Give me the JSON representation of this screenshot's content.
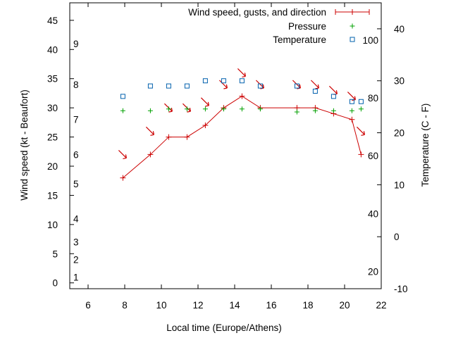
{
  "chart_data": {
    "type": "line",
    "xlabel": "Local time (Europe/Athens)",
    "ylabel_left": "Wind speed (kt - Beaufort)",
    "ylabel_right": "Temperature (C - F)",
    "xlim": [
      5,
      22
    ],
    "ylim_left": [
      -1,
      48
    ],
    "ylim_right": [
      -10,
      45
    ],
    "x_ticks": [
      "6",
      "8",
      "10",
      "12",
      "14",
      "16",
      "18",
      "20",
      "22"
    ],
    "y_left_ticks": [
      "0",
      "5",
      "10",
      "15",
      "20",
      "25",
      "30",
      "35",
      "40",
      "45"
    ],
    "y_right_ticks": [
      "-10",
      "0",
      "10",
      "20",
      "30",
      "40"
    ],
    "beaufort_labels": [
      {
        "label": "1",
        "kt": 1
      },
      {
        "label": "2",
        "kt": 4
      },
      {
        "label": "3",
        "kt": 7
      },
      {
        "label": "4",
        "kt": 11
      },
      {
        "label": "5",
        "kt": 17
      },
      {
        "label": "6",
        "kt": 22
      },
      {
        "label": "7",
        "kt": 28
      },
      {
        "label": "8",
        "kt": 34
      },
      {
        "label": "9",
        "kt": 41
      }
    ],
    "fahrenheit_labels": [
      {
        "label": "20",
        "c": -6.7
      },
      {
        "label": "40",
        "c": 4.4
      },
      {
        "label": "60",
        "c": 15.6
      },
      {
        "label": "80",
        "c": 26.7
      },
      {
        "label": "100",
        "c": 37.8
      }
    ],
    "series": [
      {
        "name": "Wind speed, gusts, and direction",
        "color": "#cc0000",
        "axis": "left",
        "x": [
          7.9,
          9.4,
          10.4,
          11.4,
          12.4,
          13.4,
          14.4,
          15.4,
          17.4,
          18.4,
          19.4,
          20.4,
          20.9
        ],
        "y": [
          18,
          22,
          25,
          25,
          27,
          30,
          32,
          30,
          30,
          30,
          29,
          28,
          22
        ],
        "gusts": [
          22,
          26,
          30,
          30,
          31,
          34,
          36,
          34,
          34,
          34,
          33,
          32,
          26
        ],
        "direction_arrows": "pointing south-east (wind from NW)"
      },
      {
        "name": "Pressure",
        "color": "#00a000",
        "axis": "left",
        "x": [
          7.9,
          9.4,
          10.4,
          11.4,
          12.4,
          13.4,
          14.4,
          15.4,
          17.4,
          18.4,
          19.4,
          20.4,
          20.9
        ],
        "y": [
          29.5,
          29.5,
          29.8,
          29.8,
          29.8,
          29.8,
          29.8,
          29.8,
          29.3,
          29.5,
          29.5,
          29.5,
          29.8
        ]
      },
      {
        "name": "Temperature",
        "color": "#0060ad",
        "axis": "right",
        "x": [
          7.9,
          9.4,
          10.4,
          11.4,
          12.4,
          13.4,
          14.4,
          15.4,
          17.4,
          18.4,
          19.4,
          20.4,
          20.9
        ],
        "y": [
          27,
          29,
          29,
          29,
          30,
          30,
          30,
          29,
          29,
          28,
          27,
          26,
          26
        ]
      }
    ],
    "legend_position": "top-right",
    "grid": false
  }
}
